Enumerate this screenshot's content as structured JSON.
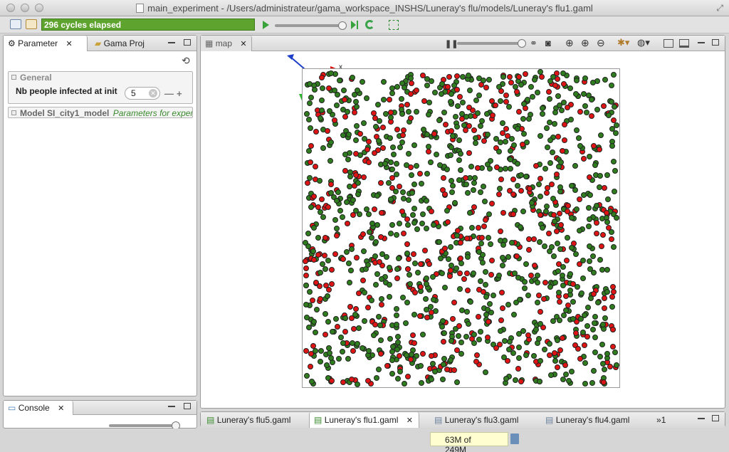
{
  "window": {
    "title": "main_experiment - /Users/administrateur/gama_workspace_INSHS/Luneray's flu/models/Luneray's flu1.gaml"
  },
  "toolbar": {
    "status_text": "296 cycles elapsed",
    "status_color": "#5ea32e"
  },
  "left_panel": {
    "tabs": [
      {
        "label": "Parameter",
        "active": true
      },
      {
        "label": "Gama Proj",
        "active": false
      }
    ],
    "groups": [
      {
        "label": "General"
      },
      {
        "label": "Model SI_city1_model"
      }
    ],
    "model_group_hint": "Parameters for experim",
    "parameter": {
      "label": "Nb people infected at init",
      "value": "5"
    }
  },
  "console_panel": {
    "tab_label": "Console"
  },
  "map_panel": {
    "tab_label": "map",
    "axis_x_label": "x"
  },
  "editor_tabs": [
    {
      "label": "Luneray's flu5.gaml",
      "active": false
    },
    {
      "label": "Luneray's flu1.gaml",
      "active": true
    },
    {
      "label": "Luneray's flu3.gaml",
      "active": false
    },
    {
      "label": "Luneray's flu4.gaml",
      "active": false
    }
  ],
  "overflow_tabs_count": "1",
  "status_bar": {
    "heap": "63M of 249M"
  },
  "simulation": {
    "healthy_color": "#2f7d1e",
    "infected_color": "#e01414"
  }
}
